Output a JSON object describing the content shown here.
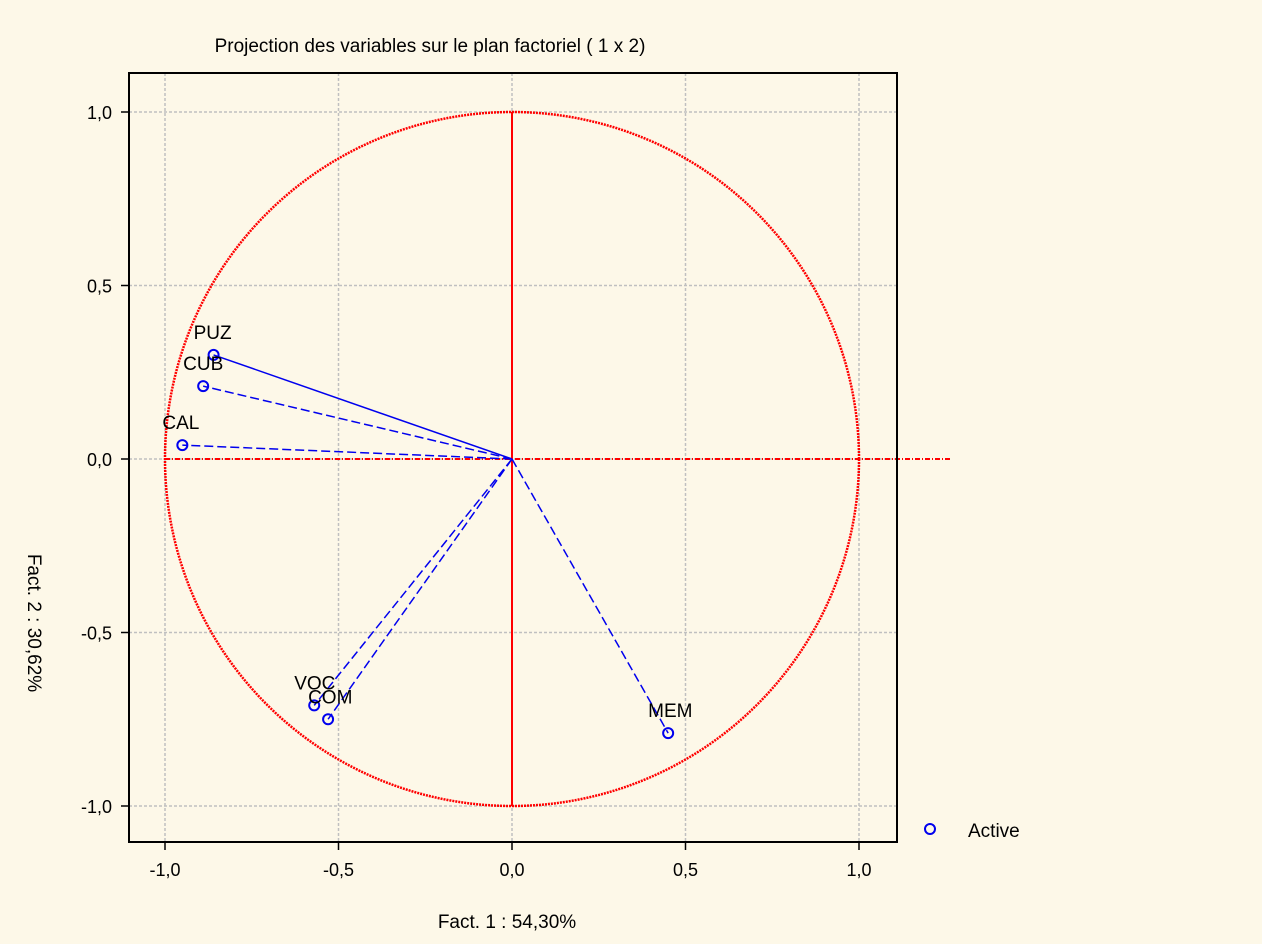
{
  "chart_data": {
    "type": "scatter",
    "title": "Projection des variables sur le plan factoriel (  1 x   2)",
    "xlabel": "Fact. 1   : 54,30%",
    "ylabel": "Fact. 2  : 30,62%",
    "xlim": [
      -1.1,
      1.1
    ],
    "ylim": [
      -1.1,
      1.1
    ],
    "xticks": [
      -1.0,
      -0.5,
      0.0,
      0.5,
      1.0
    ],
    "yticks": [
      -1.0,
      -0.5,
      0.0,
      0.5,
      1.0
    ],
    "xtick_labels": [
      "-1,0",
      "-0,5",
      "0,0",
      "0,5",
      "1,0"
    ],
    "ytick_labels": [
      "-1,0",
      "-0,5",
      "0,0",
      "0,5",
      "1,0"
    ],
    "grid": true,
    "unit_circle": true,
    "legend": {
      "position": "bottom-right",
      "entries": [
        "Active"
      ]
    },
    "series": [
      {
        "name": "Active",
        "points": [
          {
            "label": "PUZ",
            "x": -0.86,
            "y": 0.3
          },
          {
            "label": "CUB",
            "x": -0.89,
            "y": 0.21
          },
          {
            "label": "CAL",
            "x": -0.95,
            "y": 0.04
          },
          {
            "label": "VOC",
            "x": -0.57,
            "y": -0.71
          },
          {
            "label": "COM",
            "x": -0.53,
            "y": -0.75
          },
          {
            "label": "MEM",
            "x": 0.45,
            "y": -0.79
          }
        ]
      }
    ],
    "colors": {
      "circle": "#ff0000",
      "points": "#0000ee",
      "grid": "#c0c0c0"
    }
  }
}
